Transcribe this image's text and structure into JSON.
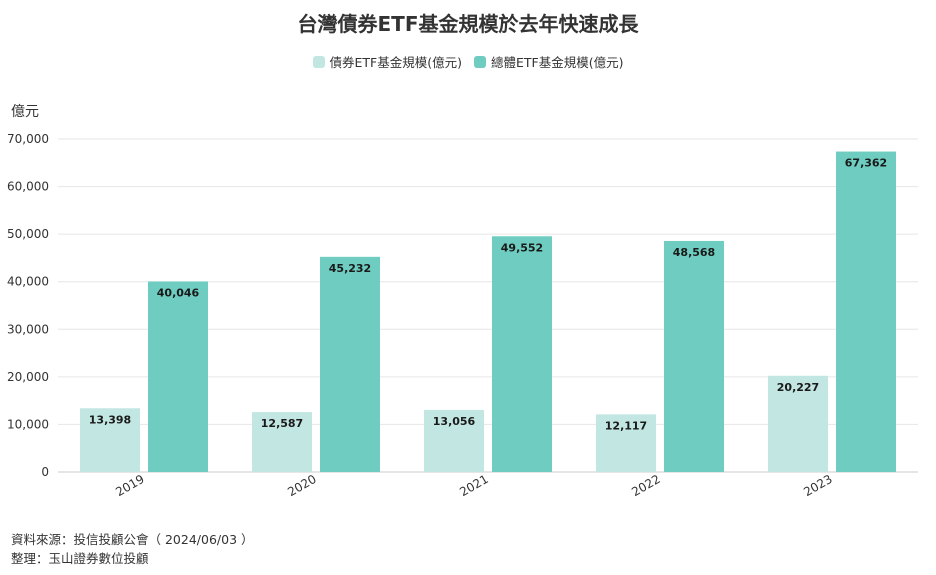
{
  "chart_data": {
    "type": "bar",
    "title": "台灣債券ETF基金規模於去年快速成長",
    "ylabel": "億元",
    "xlabel": "",
    "ylim": [
      0,
      70000
    ],
    "yticks": [
      0,
      10000,
      20000,
      30000,
      40000,
      50000,
      60000,
      70000
    ],
    "ytick_labels": [
      "0",
      "10,000",
      "20,000",
      "30,000",
      "40,000",
      "50,000",
      "60,000",
      "70,000"
    ],
    "categories": [
      "2019",
      "2020",
      "2021",
      "2022",
      "2023"
    ],
    "series": [
      {
        "name": "債券ETF基金規模(億元)",
        "color": "#c2e6e2",
        "values": [
          13398,
          12587,
          13056,
          12117,
          20227
        ],
        "labels": [
          "13,398",
          "12,587",
          "13,056",
          "12,117",
          "20,227"
        ]
      },
      {
        "name": "總體ETF基金規模(億元)",
        "color": "#6ecdc0",
        "values": [
          40046,
          45232,
          49552,
          48568,
          67362
        ],
        "labels": [
          "40,046",
          "45,232",
          "49,552",
          "48,568",
          "67,362"
        ]
      }
    ],
    "legend": "top-center",
    "grid": true
  },
  "footer": {
    "source": "資料來源：投信投顧公會（ 2024/06/03 ）",
    "compiled": "整理：玉山證券數位投顧"
  }
}
